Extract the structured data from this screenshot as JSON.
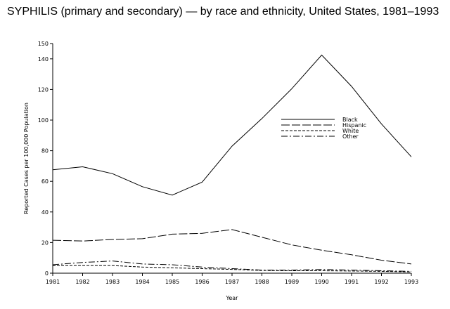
{
  "chart_data": {
    "type": "line",
    "title": "SYPHILIS (primary and secondary) — by race and ethnicity, United States, 1981–1993",
    "xlabel": "Year",
    "ylabel": "Reported Cases per 100,000 Population",
    "x": [
      1981,
      1982,
      1983,
      1984,
      1985,
      1986,
      1987,
      1988,
      1989,
      1990,
      1991,
      1992,
      1993
    ],
    "xticks": [
      "1981",
      "1982",
      "1983",
      "1984",
      "1985",
      "1986",
      "1987",
      "1988",
      "1989",
      "1990",
      "1991",
      "1992",
      "1993"
    ],
    "yticks": [
      0,
      20,
      40,
      60,
      80,
      100,
      120,
      140,
      150
    ],
    "ylim": [
      0,
      150
    ],
    "grid": false,
    "legend_position": "center-right",
    "series": [
      {
        "name": "Black",
        "dash": "solid",
        "values": [
          67.5,
          69.5,
          65.0,
          56.5,
          51.0,
          59.5,
          83.0,
          101.0,
          120.5,
          142.5,
          122.0,
          97.5,
          76.0
        ]
      },
      {
        "name": "Hispanic",
        "dash": "longdash",
        "values": [
          21.5,
          21.0,
          22.0,
          22.5,
          25.5,
          26.0,
          28.5,
          23.5,
          18.5,
          15.0,
          12.0,
          8.5,
          6.0
        ]
      },
      {
        "name": "White",
        "dash": "dashed",
        "values": [
          5.0,
          5.0,
          5.0,
          4.0,
          3.5,
          3.0,
          2.5,
          1.8,
          1.6,
          1.6,
          1.4,
          1.2,
          0.8
        ]
      },
      {
        "name": "Other",
        "dash": "dashdot",
        "values": [
          5.5,
          7.0,
          8.0,
          6.0,
          5.5,
          4.0,
          3.0,
          2.0,
          2.0,
          2.5,
          2.0,
          1.6,
          1.2
        ]
      }
    ]
  }
}
